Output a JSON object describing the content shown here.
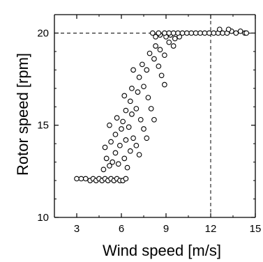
{
  "chart_data": {
    "type": "scatter",
    "title": "",
    "xlabel": "Wind speed [m/s]",
    "ylabel": "Rotor speed [rpm]",
    "xlim": [
      1.5,
      15
    ],
    "ylim": [
      10,
      21
    ],
    "xticks": [
      3,
      6,
      9,
      12,
      15
    ],
    "xtick_labels": [
      "3",
      "6",
      "9",
      "12",
      "15"
    ],
    "yticks": [
      10,
      15,
      20
    ],
    "ytick_labels": [
      "10",
      "15",
      "20"
    ],
    "reference_lines": {
      "x": 12,
      "y": 20
    },
    "grid": false,
    "legend": "none",
    "marker": "open-circle",
    "series": [
      {
        "values": [
          [
            3.0,
            12.1
          ],
          [
            3.3,
            12.1
          ],
          [
            3.6,
            12.1
          ],
          [
            3.9,
            12.0
          ],
          [
            4.1,
            12.1
          ],
          [
            4.3,
            12.0
          ],
          [
            4.5,
            12.1
          ],
          [
            4.7,
            12.0
          ],
          [
            4.9,
            12.1
          ],
          [
            5.1,
            12.0
          ],
          [
            5.3,
            12.1
          ],
          [
            5.5,
            12.0
          ],
          [
            5.7,
            12.1
          ],
          [
            5.9,
            12.0
          ],
          [
            6.1,
            12.0
          ],
          [
            6.3,
            12.1
          ],
          [
            4.8,
            12.6
          ],
          [
            5.2,
            12.8
          ],
          [
            5.0,
            13.2
          ],
          [
            5.4,
            13.0
          ],
          [
            4.9,
            13.8
          ],
          [
            5.3,
            14.1
          ],
          [
            5.6,
            13.5
          ],
          [
            5.8,
            12.9
          ],
          [
            5.2,
            15.0
          ],
          [
            5.6,
            14.5
          ],
          [
            5.9,
            13.9
          ],
          [
            6.2,
            13.2
          ],
          [
            6.4,
            12.7
          ],
          [
            6.0,
            14.8
          ],
          [
            6.3,
            14.2
          ],
          [
            6.6,
            13.6
          ],
          [
            5.7,
            15.4
          ],
          [
            6.1,
            15.2
          ],
          [
            6.5,
            14.9
          ],
          [
            6.8,
            14.3
          ],
          [
            7.0,
            13.9
          ],
          [
            7.2,
            13.4
          ],
          [
            6.3,
            15.8
          ],
          [
            6.7,
            15.6
          ],
          [
            6.2,
            16.6
          ],
          [
            6.6,
            16.3
          ],
          [
            7.0,
            15.9
          ],
          [
            7.3,
            15.3
          ],
          [
            7.5,
            14.8
          ],
          [
            7.7,
            14.3
          ],
          [
            6.7,
            17.0
          ],
          [
            7.1,
            16.8
          ],
          [
            6.8,
            18.0
          ],
          [
            7.2,
            17.6
          ],
          [
            7.5,
            17.1
          ],
          [
            7.8,
            16.5
          ],
          [
            8.0,
            15.9
          ],
          [
            8.2,
            15.3
          ],
          [
            7.4,
            18.3
          ],
          [
            7.7,
            18.0
          ],
          [
            7.9,
            18.9
          ],
          [
            8.2,
            18.6
          ],
          [
            8.5,
            18.2
          ],
          [
            8.7,
            17.7
          ],
          [
            8.9,
            17.2
          ],
          [
            8.3,
            19.3
          ],
          [
            8.6,
            19.1
          ],
          [
            8.9,
            18.8
          ],
          [
            8.3,
            19.8
          ],
          [
            8.6,
            19.9
          ],
          [
            9.0,
            19.8
          ],
          [
            9.3,
            19.9
          ],
          [
            9.6,
            19.7
          ],
          [
            9.9,
            19.8
          ],
          [
            9.2,
            19.5
          ],
          [
            9.5,
            19.3
          ],
          [
            8.1,
            20.0
          ],
          [
            8.5,
            20.0
          ],
          [
            8.9,
            20.0
          ],
          [
            9.2,
            20.0
          ],
          [
            9.5,
            20.0
          ],
          [
            9.8,
            20.0
          ],
          [
            10.1,
            20.0
          ],
          [
            10.4,
            20.0
          ],
          [
            10.7,
            20.0
          ],
          [
            11.0,
            20.0
          ],
          [
            11.3,
            20.0
          ],
          [
            11.6,
            20.0
          ],
          [
            11.9,
            20.0
          ],
          [
            12.2,
            20.0
          ],
          [
            12.5,
            20.0
          ],
          [
            12.8,
            20.0
          ],
          [
            13.1,
            20.0
          ],
          [
            13.4,
            20.1
          ],
          [
            13.7,
            20.0
          ],
          [
            14.0,
            20.1
          ],
          [
            14.3,
            20.0
          ],
          [
            12.6,
            20.2
          ],
          [
            13.2,
            20.2
          ],
          [
            14.4,
            20.0
          ]
        ]
      }
    ]
  }
}
